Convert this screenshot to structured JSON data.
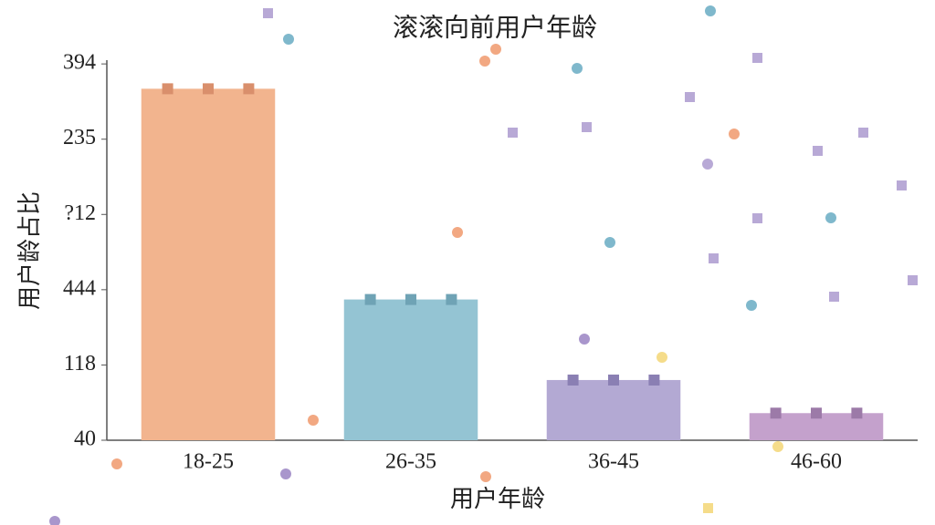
{
  "chart_data": {
    "type": "bar",
    "title": "滚滚向前用户年龄",
    "x_label": "用户年龄",
    "y_label": "用户龄占比",
    "categories": [
      "18-25",
      "26-35",
      "36-45",
      "46-60"
    ],
    "values": [
      4.67,
      1.87,
      0.8,
      0.36
    ],
    "colors": [
      "#f2b48e",
      "#94c4d3",
      "#b3a9d3",
      "#c4a1cc"
    ],
    "marker_colors": [
      "#d98f6c",
      "#6fa3b5",
      "#8a7fb3",
      "#9c7aa8"
    ],
    "ylim": [
      0,
      5.05
    ],
    "yticks": [
      {
        "value": 0,
        "label": "40"
      },
      {
        "value": 1,
        "label": "118"
      },
      {
        "value": 2,
        "label": "444"
      },
      {
        "value": 3,
        "label": "?12"
      },
      {
        "value": 4,
        "label": "235"
      },
      {
        "value": 5,
        "label": "394"
      }
    ]
  }
}
